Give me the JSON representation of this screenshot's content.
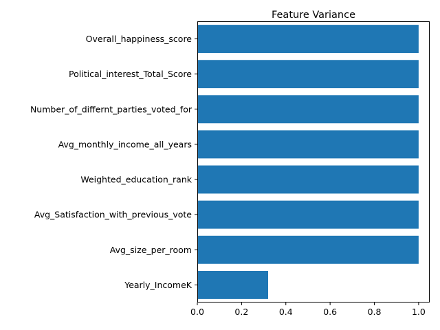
{
  "chart_data": {
    "type": "bar",
    "orientation": "horizontal",
    "title": "Feature Variance",
    "xlabel": "",
    "ylabel": "",
    "categories": [
      "Overall_happiness_score",
      "Political_interest_Total_Score",
      "Number_of_differnt_parties_voted_for",
      "Avg_monthly_income_all_years",
      "Weighted_education_rank",
      "Avg_Satisfaction_with_previous_vote",
      "Avg_size_per_room",
      "Yearly_IncomeK"
    ],
    "values": [
      1.0,
      1.0,
      1.0,
      1.0,
      1.0,
      1.0,
      1.0,
      0.32
    ],
    "xlim": [
      0,
      1.05
    ],
    "xticks": [
      0.0,
      0.2,
      0.4,
      0.6,
      0.8,
      1.0
    ],
    "xtick_labels": [
      "0.0",
      "0.2",
      "0.4",
      "0.6",
      "0.8",
      "1.0"
    ],
    "grid": false,
    "legend": "none",
    "colors": {
      "bar": "#1f77b4",
      "axes": "#000000",
      "background": "#ffffff"
    }
  }
}
